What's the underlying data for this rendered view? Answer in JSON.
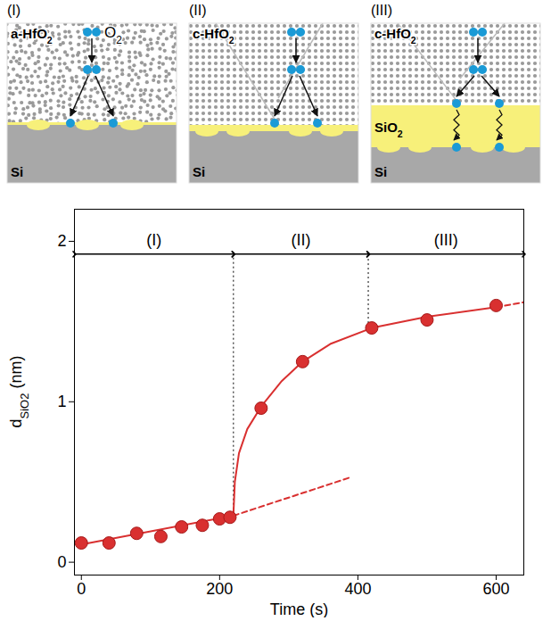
{
  "chart_data": {
    "type": "scatter",
    "xlabel": "Time (s)",
    "ylabel": "dSiO2 (nm)",
    "ylabel_subscript": "SiO2",
    "xlim": [
      -10,
      640
    ],
    "ylim": [
      -0.08,
      2.2
    ],
    "xticks": [
      0,
      200,
      400,
      600
    ],
    "yticks": [
      0,
      1,
      2
    ],
    "grid": false,
    "x": [
      0,
      40,
      80,
      115,
      145,
      175,
      200,
      215,
      260,
      320,
      420,
      500,
      600
    ],
    "values": [
      0.12,
      0.12,
      0.18,
      0.16,
      0.22,
      0.23,
      0.27,
      0.28,
      0.96,
      1.25,
      1.46,
      1.51,
      1.6
    ],
    "color": "#d93030",
    "marker": "circle",
    "lines": [
      {
        "x": [
          0,
          220
        ],
        "values": [
          0.11,
          0.29
        ],
        "color": "#d93030",
        "line_style": "solid"
      },
      {
        "x": [
          220,
          390
        ],
        "values": [
          0.29,
          0.53
        ],
        "color": "#d93030",
        "line_style": "dashed"
      },
      {
        "x": [
          220,
          222,
          228,
          240,
          260,
          290,
          320,
          360,
          420,
          500,
          600
        ],
        "values": [
          0.3,
          0.5,
          0.68,
          0.83,
          0.97,
          1.13,
          1.25,
          1.36,
          1.46,
          1.53,
          1.59
        ],
        "color": "#d93030",
        "line_style": "solid"
      },
      {
        "x": [
          600,
          640
        ],
        "values": [
          1.59,
          1.62
        ],
        "color": "#d93030",
        "line_style": "dashed"
      }
    ],
    "regions": [
      {
        "label": "(I)",
        "start": -10,
        "end": 220,
        "y": 1.92
      },
      {
        "label": "(II)",
        "start": 220,
        "end": 415,
        "y": 1.92
      },
      {
        "label": "(III)",
        "start": 415,
        "end": 640,
        "y": 1.92
      }
    ],
    "boundaries": [
      {
        "x": 220,
        "y_from": 0.3,
        "y_to": 1.92
      },
      {
        "x": 415,
        "y_from": 1.46,
        "y_to": 1.92
      }
    ]
  },
  "diagram": {
    "panels": [
      {
        "label": "(I)",
        "gas": "O2",
        "layers": [
          "a-HfO2",
          "Si"
        ]
      },
      {
        "label": "(II)",
        "layers": [
          "c-HfO2",
          "Si"
        ]
      },
      {
        "label": "(III)",
        "layers": [
          "c-HfO2",
          "SiO2",
          "Si"
        ]
      }
    ]
  }
}
